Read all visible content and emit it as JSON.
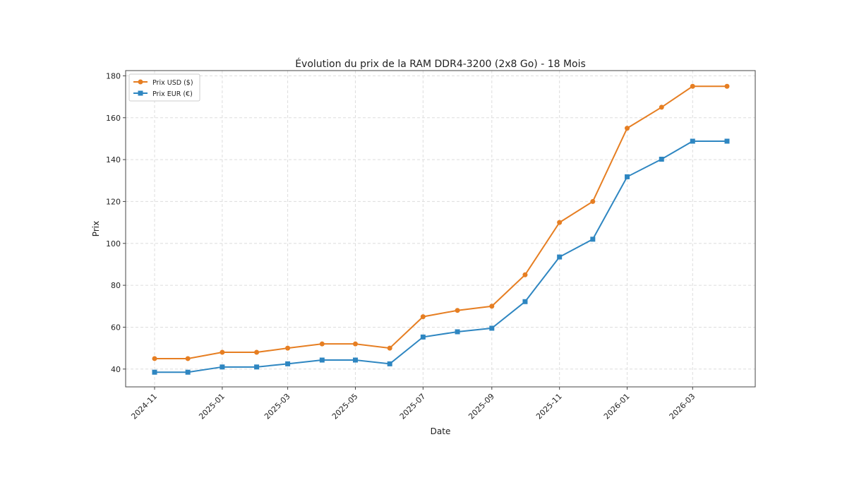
{
  "chart_data": {
    "type": "line",
    "title": "Évolution du prix de la RAM DDR4-3200 (2x8 Go) - 18 Mois",
    "xlabel": "Date",
    "ylabel": "Prix",
    "x": [
      "2024-11",
      "2024-12",
      "2025-01",
      "2025-02",
      "2025-03",
      "2025-04",
      "2025-05",
      "2025-06",
      "2025-07",
      "2025-08",
      "2025-09",
      "2025-10",
      "2025-11",
      "2025-12",
      "2026-01",
      "2026-02",
      "2026-03",
      "2026-04"
    ],
    "xticks": [
      "2024-11",
      "2025-01",
      "2025-03",
      "2025-05",
      "2025-07",
      "2025-09",
      "2025-11",
      "2026-01",
      "2026-03"
    ],
    "yticks": [
      40,
      60,
      80,
      100,
      120,
      140,
      160,
      180
    ],
    "ylim": [
      31.5,
      182.5
    ],
    "grid": true,
    "legend": "top-left",
    "series": [
      {
        "name": "Prix USD ($)",
        "color": "#e67e22",
        "marker": "circle",
        "values": [
          45,
          45,
          48,
          48,
          50,
          52,
          52,
          50,
          65,
          68,
          70,
          85,
          110,
          120,
          155,
          165,
          175,
          175
        ]
      },
      {
        "name": "Prix EUR (€)",
        "color": "#2e86c1",
        "marker": "square",
        "values": [
          38.5,
          38.5,
          41,
          41,
          42.5,
          44.3,
          44.3,
          42.5,
          55.3,
          57.8,
          59.5,
          72.2,
          93.5,
          102,
          131.8,
          140.2,
          148.8,
          148.8
        ]
      }
    ]
  }
}
